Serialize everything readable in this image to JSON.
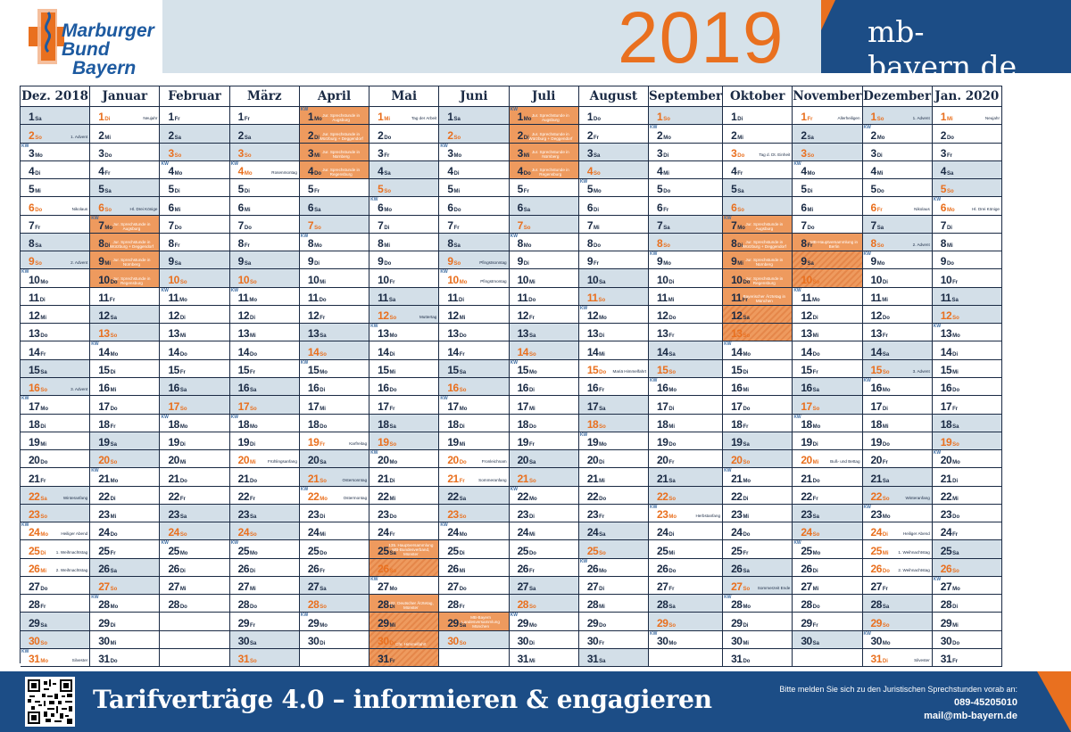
{
  "logo": {
    "line1": "Marburger",
    "line2": "Bund",
    "line3": "Bayern"
  },
  "year": "2019",
  "website": "mb-bayern.de",
  "colors": {
    "orange": "#e9701f",
    "navy": "#1c4d86",
    "weekend": "#d3dfe8"
  },
  "months": [
    {
      "label": "Dez. 2018",
      "days": 31,
      "start": 5
    },
    {
      "label": "Januar",
      "days": 31,
      "start": 1
    },
    {
      "label": "Februar",
      "days": 28,
      "start": 4
    },
    {
      "label": "März",
      "days": 31,
      "start": 4
    },
    {
      "label": "April",
      "days": 30,
      "start": 0
    },
    {
      "label": "Mai",
      "days": 31,
      "start": 2
    },
    {
      "label": "Juni",
      "days": 30,
      "start": 5
    },
    {
      "label": "Juli",
      "days": 31,
      "start": 0
    },
    {
      "label": "August",
      "days": 31,
      "start": 3
    },
    {
      "label": "September",
      "days": 30,
      "start": 6
    },
    {
      "label": "Oktober",
      "days": 31,
      "start": 1
    },
    {
      "label": "November",
      "days": 30,
      "start": 4
    },
    {
      "label": "Dezember",
      "days": 31,
      "start": 6
    },
    {
      "label": "Jan. 2020",
      "days": 31,
      "start": 2
    }
  ],
  "weekday_abbr": [
    "Mo",
    "Di",
    "Mi",
    "Do",
    "Fr",
    "Sa",
    "So"
  ],
  "holidays": [
    [
      [
        2,
        "1. Advent"
      ],
      [
        6,
        "Nikolaus"
      ],
      [
        9,
        "2. Advent"
      ],
      [
        16,
        "3. Advent"
      ],
      [
        22,
        "Winteranfang"
      ],
      [
        23,
        ""
      ],
      [
        24,
        "Heiliger Abend"
      ],
      [
        25,
        "1. Weihnachtstag"
      ],
      [
        26,
        "2. Weihnachtstag"
      ],
      [
        30,
        ""
      ],
      [
        31,
        "Silvester"
      ]
    ],
    [
      [
        1,
        "Neujahr"
      ],
      [
        6,
        "Hl. Drei Könige"
      ]
    ],
    [],
    [
      [
        4,
        "Rosenmontag"
      ],
      [
        20,
        "Frühlingsanfang"
      ]
    ],
    [
      [
        19,
        "Karfreitag"
      ],
      [
        21,
        "Ostersonntag"
      ],
      [
        22,
        "Ostermontag"
      ]
    ],
    [
      [
        1,
        "Tag der Arbeit"
      ],
      [
        12,
        "Muttertag"
      ],
      [
        30,
        "Chr. Himmelfahrt"
      ]
    ],
    [
      [
        9,
        "Pfingstsonntag"
      ],
      [
        10,
        "Pfingstmontag"
      ],
      [
        20,
        "Fronleichnam"
      ],
      [
        21,
        "Sommeranfang"
      ]
    ],
    [],
    [
      [
        15,
        "Mariä Himmelfahrt"
      ]
    ],
    [
      [
        23,
        "Herbstanfang"
      ]
    ],
    [
      [
        3,
        "Tag d. Dt. Einheit"
      ],
      [
        27,
        "Sommerzeit Ende"
      ]
    ],
    [
      [
        1,
        "Allerheiligen"
      ],
      [
        20,
        "Buß- und Bettag"
      ]
    ],
    [
      [
        1,
        "1. Advent"
      ],
      [
        6,
        "Nikolaus"
      ],
      [
        8,
        "2. Advent"
      ],
      [
        15,
        "3. Advent"
      ],
      [
        22,
        "Winteranfang"
      ],
      [
        24,
        "Heiliger Abend"
      ],
      [
        25,
        "1. Weihnachtstag"
      ],
      [
        26,
        "2. Weihnachtstag"
      ],
      [
        31,
        "Silvester"
      ]
    ],
    [
      [
        1,
        "Neujahr"
      ],
      [
        6,
        "Hl. Drei Könige"
      ]
    ]
  ],
  "events": [
    [],
    [
      [
        7,
        "Jur. Sprechstunde in Augsburg"
      ],
      [
        8,
        "Jur. Sprechstunde in Würzburg + Deggendorf"
      ],
      [
        9,
        "Jur. Sprechstunde in Nürnberg"
      ],
      [
        10,
        "Jur. Sprechstunde in Regensburg"
      ]
    ],
    [],
    [],
    [
      [
        1,
        "Jur. Sprechstunde in Augsburg"
      ],
      [
        2,
        "Jur. Sprechstunde in Würzburg + Deggendorf"
      ],
      [
        3,
        "Jur. Sprechstunde in Nürnberg"
      ],
      [
        4,
        "Jur. Sprechstunde in Regensburg"
      ]
    ],
    [
      [
        25,
        "135. Hauptversammlung MB-Bundesverband, Münster"
      ],
      [
        26,
        ""
      ],
      [
        28,
        "122. Deutscher Ärztetag, Münster"
      ],
      [
        29,
        ""
      ],
      [
        30,
        ""
      ],
      [
        31,
        ""
      ]
    ],
    [
      [
        29,
        "MB-Bayern Landesversammlung München"
      ]
    ],
    [
      [
        1,
        "Jur. Sprechstunde in Augsburg"
      ],
      [
        2,
        "Jur. Sprechstunde in Würzburg + Deggendorf"
      ],
      [
        3,
        "Jur. Sprechstunde in Nürnberg"
      ],
      [
        4,
        "Jur. Sprechstunde in Regensburg"
      ]
    ],
    [],
    [],
    [
      [
        7,
        "Jur. Sprechstunde in Augsburg"
      ],
      [
        8,
        "Jur. Sprechstunde in Würzburg + Deggendorf"
      ],
      [
        9,
        "Jur. Sprechstunde in Nürnberg"
      ],
      [
        10,
        "Jur. Sprechstunde in Regensburg"
      ],
      [
        11,
        "Bayerischer Ärztetag in München"
      ],
      [
        12,
        ""
      ],
      [
        13,
        ""
      ]
    ],
    [
      [
        8,
        "MB-Hauptversammlung in Berlin"
      ],
      [
        9,
        ""
      ],
      [
        10,
        ""
      ]
    ],
    [],
    []
  ],
  "footer": {
    "slogan": "Tarifverträge 4.0 – informieren & engagieren",
    "contact_line": "Bitte melden Sie sich zu den Juristischen Sprechstunden vorab an:",
    "phone": "089-45205010",
    "email": "mail@mb-bayern.de"
  }
}
